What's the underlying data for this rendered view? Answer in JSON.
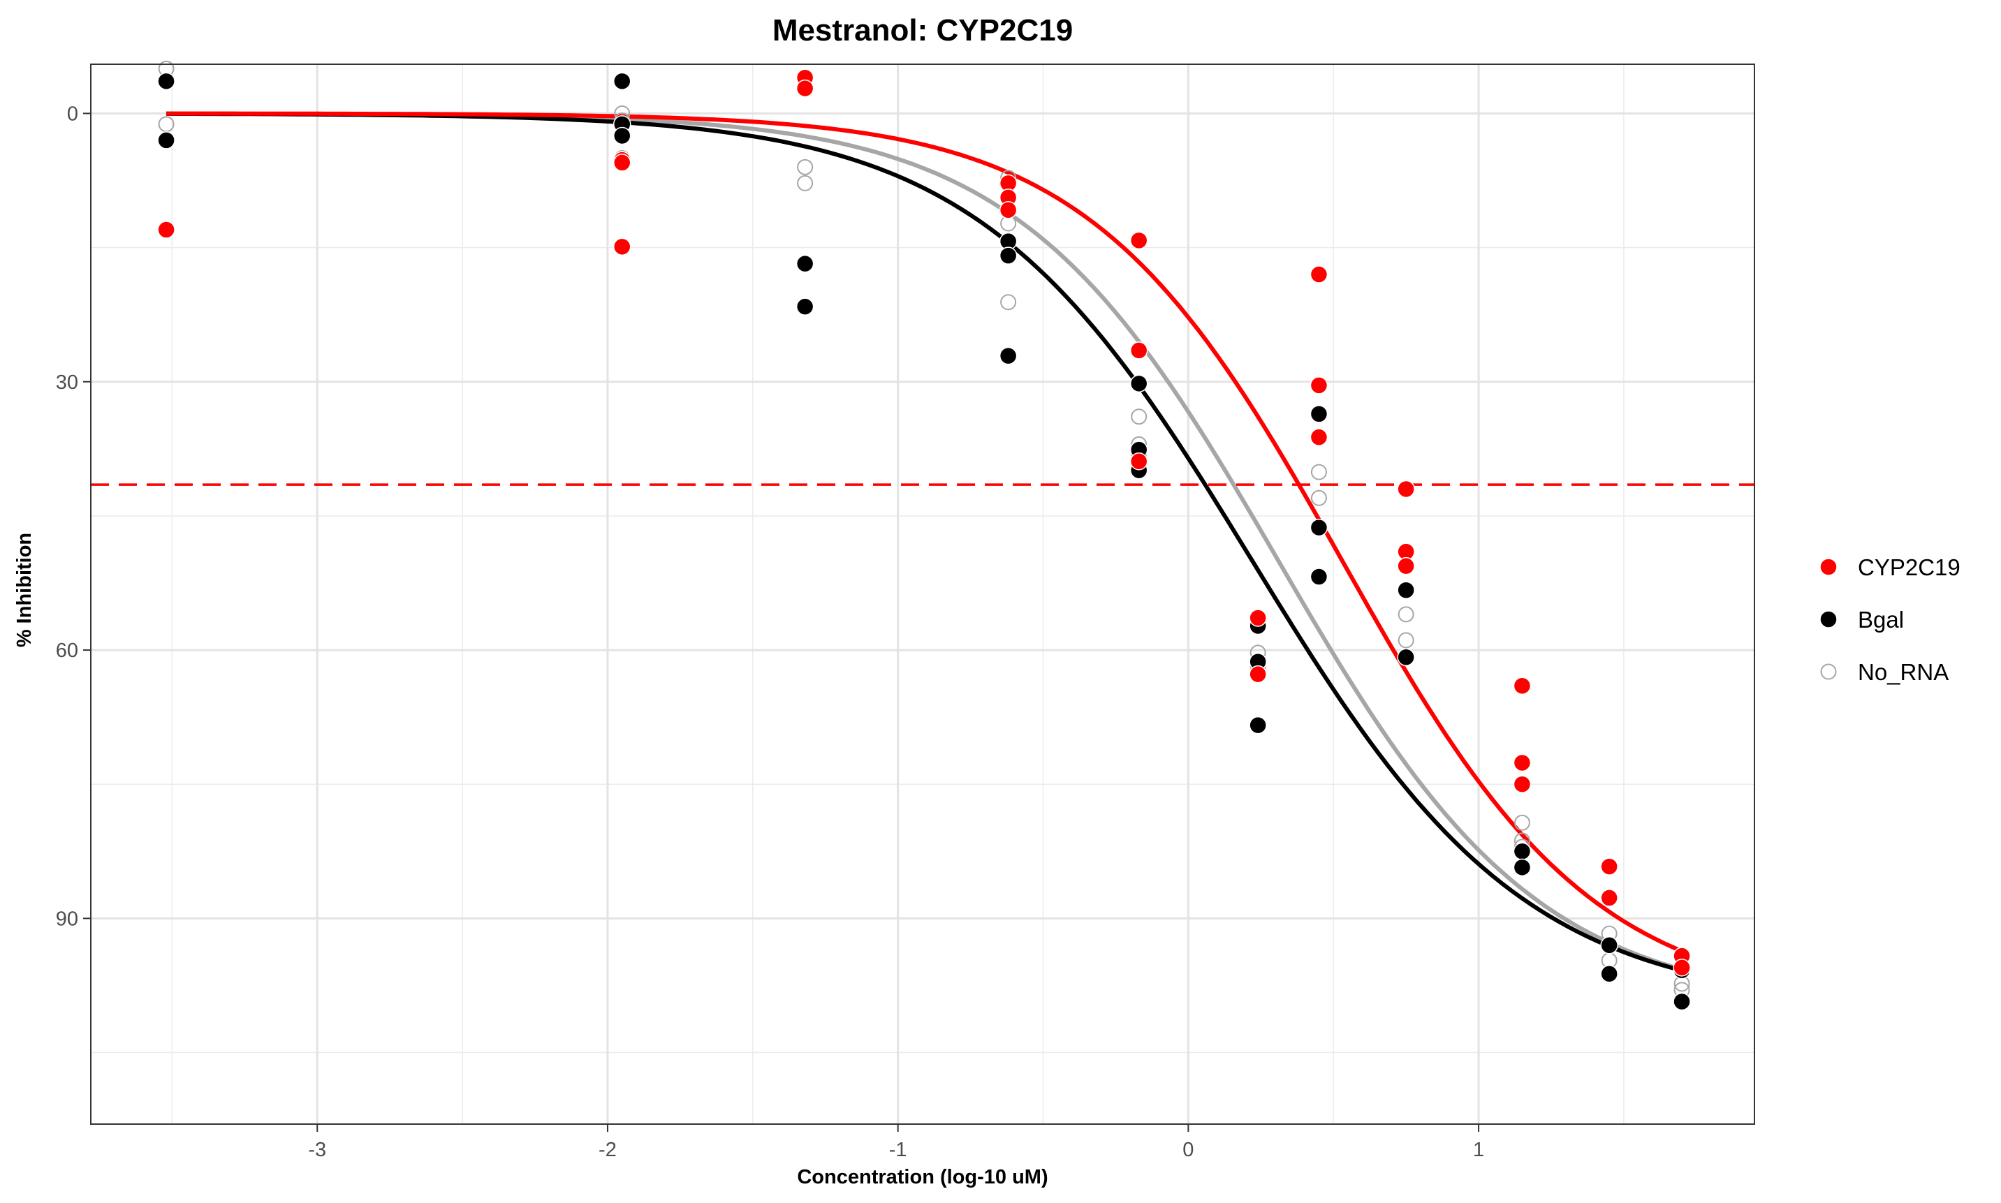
{
  "chart_data": {
    "type": "scatter",
    "title": "Mestranol: CYP2C19",
    "xlabel": "Concentration (log-10 uM)",
    "ylabel": "% Inhibition",
    "xlim": [
      -3.78,
      1.95
    ],
    "ylim": [
      -5.5,
      113
    ],
    "y_reversed": true,
    "x_ticks": [
      -3,
      -2,
      -1,
      0,
      1
    ],
    "x_tick_labels": [
      "-3",
      "-2",
      "-1",
      "0",
      "1"
    ],
    "y_ticks": [
      0,
      30,
      60,
      90
    ],
    "y_tick_labels": [
      "0",
      "30",
      "60",
      "90"
    ],
    "grid": true,
    "legend_position": "right",
    "threshold": {
      "y": 41.5,
      "color": "#ff0000",
      "style": "dashed"
    },
    "series": [
      {
        "name": "CYP2C19",
        "color": "#ff0000",
        "marker": "filled-circle",
        "points": [
          [
            -3.52,
            13
          ],
          [
            -1.95,
            5.2
          ],
          [
            -1.95,
            5.5
          ],
          [
            -1.95,
            14.9
          ],
          [
            -1.32,
            -4
          ],
          [
            -1.32,
            -2.8
          ],
          [
            -0.62,
            7.8
          ],
          [
            -0.62,
            9.4
          ],
          [
            -0.62,
            10.8
          ],
          [
            -0.17,
            14.2
          ],
          [
            -0.17,
            26.5
          ],
          [
            -0.17,
            38.9
          ],
          [
            0.24,
            56.4
          ],
          [
            0.24,
            62.7
          ],
          [
            0.45,
            18
          ],
          [
            0.45,
            30.4
          ],
          [
            0.45,
            36.2
          ],
          [
            0.75,
            42
          ],
          [
            0.75,
            49
          ],
          [
            0.75,
            50.6
          ],
          [
            1.15,
            64
          ],
          [
            1.15,
            72.6
          ],
          [
            1.15,
            75
          ],
          [
            1.45,
            84.2
          ],
          [
            1.45,
            87.7
          ],
          [
            1.7,
            94.2
          ],
          [
            1.7,
            95.5
          ]
        ],
        "fit": {
          "top": 100,
          "bottom": 0,
          "logIC50": 0.53,
          "hill": 1.0
        }
      },
      {
        "name": "Bgal",
        "color": "#000000",
        "marker": "filled-circle",
        "points": [
          [
            -3.52,
            -3.6
          ],
          [
            -3.52,
            3
          ],
          [
            -1.95,
            -3.6
          ],
          [
            -1.95,
            1.2
          ],
          [
            -1.95,
            2.5
          ],
          [
            -1.32,
            16.8
          ],
          [
            -1.32,
            21.6
          ],
          [
            -0.62,
            14.3
          ],
          [
            -0.62,
            15.9
          ],
          [
            -0.62,
            27.1
          ],
          [
            -0.17,
            30.2
          ],
          [
            -0.17,
            37.6
          ],
          [
            -0.17,
            39.9
          ],
          [
            0.24,
            57.3
          ],
          [
            0.24,
            61.3
          ],
          [
            0.24,
            68.4
          ],
          [
            0.45,
            33.6
          ],
          [
            0.45,
            46.3
          ],
          [
            0.45,
            51.8
          ],
          [
            0.75,
            53.3
          ],
          [
            0.75,
            60.8
          ],
          [
            1.15,
            82.5
          ],
          [
            1.15,
            84.3
          ],
          [
            1.45,
            93
          ],
          [
            1.45,
            96.2
          ],
          [
            1.7,
            95.8
          ],
          [
            1.7,
            99.3
          ]
        ],
        "fit": {
          "top": 100,
          "bottom": 0,
          "logIC50": 0.22,
          "hill": 0.92
        }
      },
      {
        "name": "No_RNA",
        "color": "#a6a6a6",
        "marker": "open-circle",
        "points": [
          [
            -3.52,
            -5
          ],
          [
            -3.52,
            1.2
          ],
          [
            -1.95,
            0
          ],
          [
            -1.95,
            0.8
          ],
          [
            -1.95,
            5
          ],
          [
            -1.32,
            6
          ],
          [
            -1.32,
            7.8
          ],
          [
            -0.62,
            7.2
          ],
          [
            -0.62,
            12.3
          ],
          [
            -0.62,
            21.1
          ],
          [
            -0.17,
            33.9
          ],
          [
            -0.17,
            37
          ],
          [
            -0.17,
            38
          ],
          [
            0.24,
            60.3
          ],
          [
            0.24,
            61.8
          ],
          [
            0.45,
            36.3
          ],
          [
            0.45,
            40.1
          ],
          [
            0.45,
            43
          ],
          [
            0.75,
            56
          ],
          [
            0.75,
            58.9
          ],
          [
            1.15,
            79.3
          ],
          [
            1.15,
            81.3
          ],
          [
            1.15,
            82
          ],
          [
            1.45,
            91.7
          ],
          [
            1.45,
            94.7
          ],
          [
            1.7,
            97.3
          ],
          [
            1.7,
            98
          ]
        ],
        "fit": {
          "top": 100,
          "bottom": 0,
          "logIC50": 0.31,
          "hill": 0.97
        }
      }
    ]
  }
}
